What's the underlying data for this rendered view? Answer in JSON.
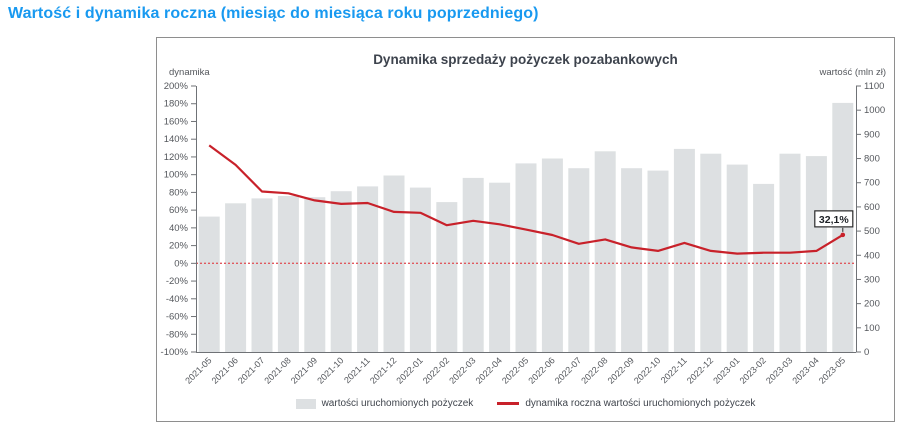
{
  "page_title": "Wartość i dynamika roczna (miesiąc do miesiąca roku poprzedniego)",
  "colors": {
    "page_title": "#1899f0",
    "chart_title": "#3d434d",
    "axis_line": "#6f7276",
    "tick_text": "#54575c",
    "bar": "#dde0e2",
    "line": "#c8212a",
    "zero_line": "#e0595f",
    "annotation_border": "#2b2b2b",
    "annotation_text": "#1d2126",
    "legend_text": "#3f444c"
  },
  "chart_data": {
    "type": "bar+line",
    "title": "Dynamika sprzedaży pożyczek pozabankowych",
    "categories": [
      "2021-05",
      "2021-06",
      "2021-07",
      "2021-08",
      "2021-09",
      "2021-10",
      "2021-11",
      "2021-12",
      "2022-01",
      "2022-02",
      "2022-03",
      "2022-04",
      "2022-05",
      "2022-06",
      "2022-07",
      "2022-08",
      "2022-09",
      "2022-10",
      "2022-11",
      "2022-12",
      "2023-01",
      "2023-02",
      "2023-03",
      "2023-04",
      "2023-05"
    ],
    "series": [
      {
        "name": "wartości uruchomionych pożyczek",
        "type": "bar",
        "axis": "right",
        "values": [
          560,
          615,
          635,
          645,
          640,
          665,
          685,
          730,
          680,
          620,
          720,
          700,
          780,
          800,
          760,
          830,
          760,
          750,
          840,
          820,
          775,
          695,
          820,
          810,
          1030
        ]
      },
      {
        "name": "dynamika roczna wartości uruchomionych pożyczek",
        "type": "line",
        "axis": "left",
        "values": [
          133,
          111,
          81,
          79,
          71,
          67,
          68,
          58,
          57,
          43,
          48,
          44,
          38,
          32,
          22,
          27,
          18,
          14,
          23,
          14,
          11,
          12,
          12,
          14,
          32.1
        ]
      }
    ],
    "left_axis": {
      "label": "dynamika",
      "min": -100,
      "max": 200,
      "step": 20,
      "suffix": "%"
    },
    "right_axis": {
      "label": "wartość (mln zł)",
      "min": 0,
      "max": 1100,
      "step": 100
    },
    "zero_line_at": 0,
    "annotation": {
      "text": "32,1%",
      "category_index": 24
    },
    "legend_position": "bottom",
    "grid": false
  }
}
